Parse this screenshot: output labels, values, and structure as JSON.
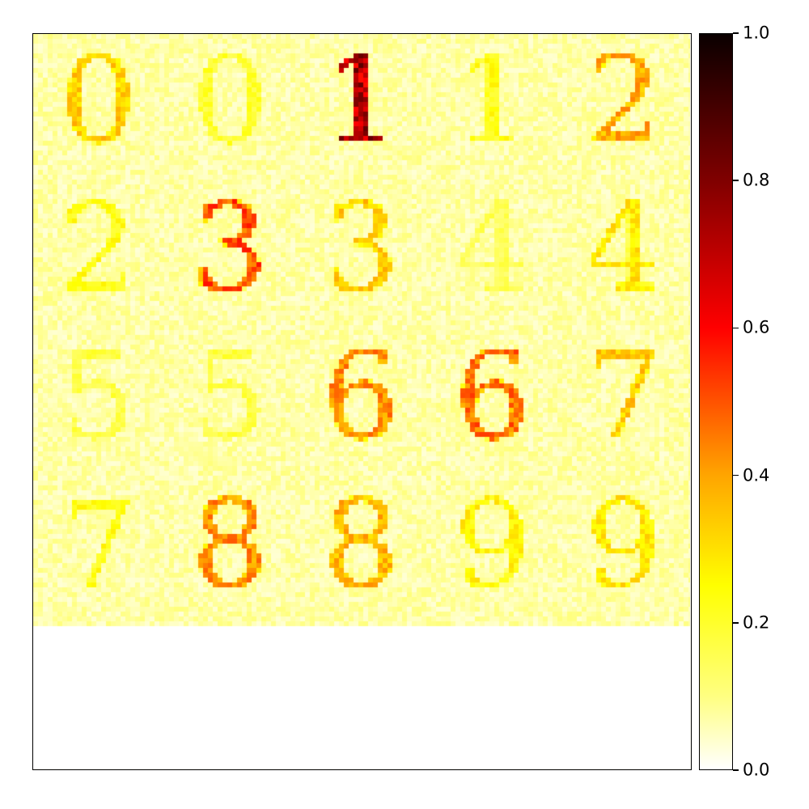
{
  "chart_data": {
    "type": "heatmap",
    "description_grid": {
      "rows": 4,
      "cols": 5,
      "digits": [
        [
          "0",
          "0",
          "1",
          "1",
          "2"
        ],
        [
          "2",
          "3",
          "3",
          "4",
          "4"
        ],
        [
          "5",
          "5",
          "6",
          "6",
          "7"
        ],
        [
          "7",
          "8",
          "8",
          "9",
          "9"
        ]
      ],
      "intensity": [
        [
          0.35,
          0.22,
          0.8,
          0.25,
          0.4
        ],
        [
          0.25,
          0.55,
          0.35,
          0.18,
          0.3
        ],
        [
          0.2,
          0.2,
          0.45,
          0.5,
          0.35
        ],
        [
          0.25,
          0.45,
          0.38,
          0.28,
          0.3
        ]
      ]
    },
    "colormap": "hot_r",
    "colorbar": {
      "min": 0.0,
      "max": 1.0,
      "ticks": [
        "0.0",
        "0.2",
        "0.4",
        "0.6",
        "0.8",
        "1.0"
      ]
    },
    "title": "",
    "xlabel": "",
    "ylabel": ""
  }
}
